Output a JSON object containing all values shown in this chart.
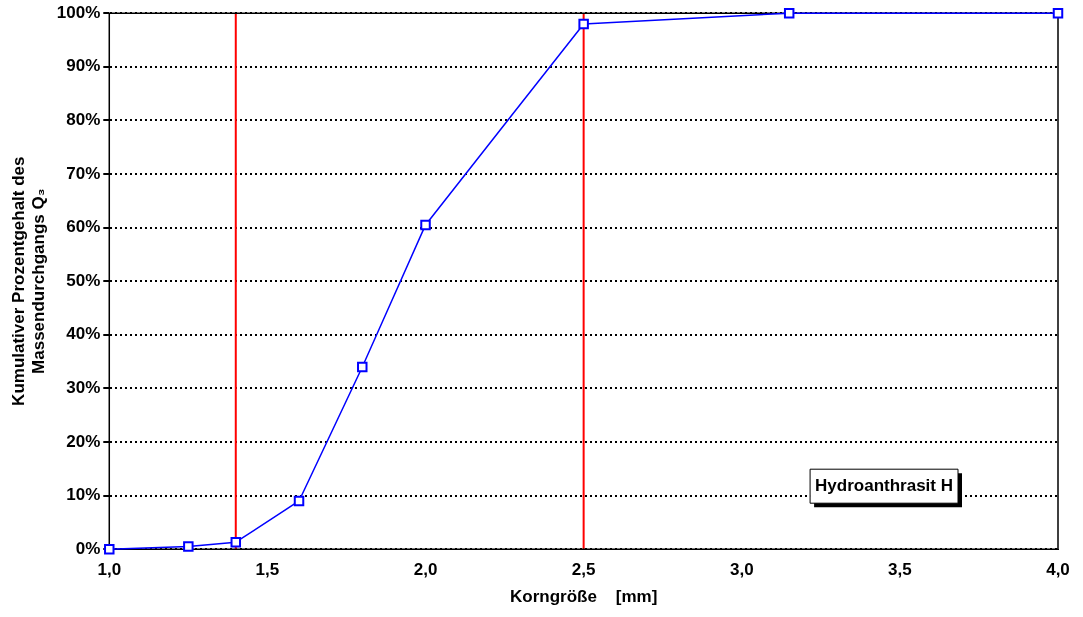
{
  "chart_data": {
    "type": "line",
    "xlabel": "Korngröße    [mm]",
    "ylabel": "Kumulativer Prozentgehalt des Massendurchgangs Q₃",
    "x": [
      1.0,
      1.25,
      1.4,
      1.6,
      1.8,
      2.0,
      2.5,
      3.15,
      4.0
    ],
    "series": [
      {
        "color": "#0000ff",
        "values": [
          0,
          0.5,
          1.3,
          9,
          34,
          60.5,
          98,
          100,
          100
        ]
      }
    ],
    "xlim": [
      1.0,
      4.0
    ],
    "xticks": [
      {
        "value": 1.0,
        "label": "1,0"
      },
      {
        "value": 1.5,
        "label": "1,5"
      },
      {
        "value": 2.0,
        "label": "2,0"
      },
      {
        "value": 2.5,
        "label": "2,5"
      },
      {
        "value": 3.0,
        "label": "3,0"
      },
      {
        "value": 3.5,
        "label": "3,5"
      },
      {
        "value": 4.0,
        "label": "4,0"
      }
    ],
    "ylim": [
      0,
      100
    ],
    "yticks": [
      {
        "value": 0,
        "label": "0%"
      },
      {
        "value": 10,
        "label": "10%"
      },
      {
        "value": 20,
        "label": "20%"
      },
      {
        "value": 30,
        "label": "30%"
      },
      {
        "value": 40,
        "label": "40%"
      },
      {
        "value": 50,
        "label": "50%"
      },
      {
        "value": 60,
        "label": "60%"
      },
      {
        "value": 70,
        "label": "70%"
      },
      {
        "value": 80,
        "label": "80%"
      },
      {
        "value": 90,
        "label": "90%"
      },
      {
        "value": 100,
        "label": "100%"
      }
    ],
    "ref_lines": [
      {
        "axis": "x",
        "value": 1.4,
        "color": "#ff0000"
      },
      {
        "axis": "x",
        "value": 2.5,
        "color": "#ff0000"
      }
    ],
    "annotations": [
      "Hydroanthrasit H"
    ],
    "grid": "y",
    "legend": false,
    "marker": "square",
    "line_style": "solid"
  }
}
